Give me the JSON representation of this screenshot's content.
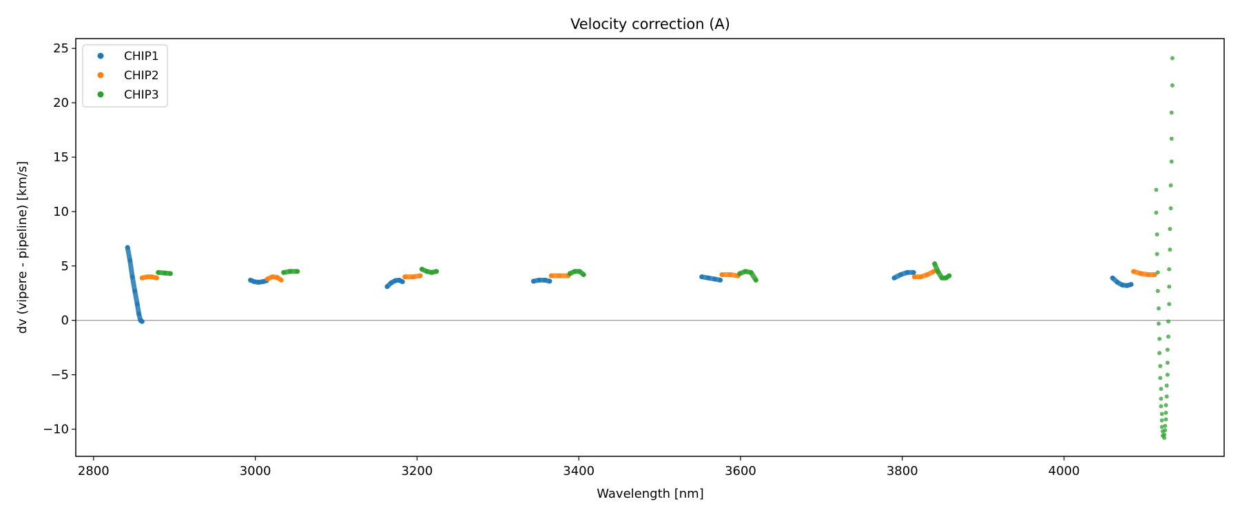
{
  "chart_data": {
    "type": "scatter",
    "title": "Velocity correction (A)",
    "xlabel": "Wavelength [nm]",
    "ylabel": "dv (vipere - pipeline) [km/s]",
    "xlim": [
      2778,
      4198
    ],
    "ylim": [
      -12.5,
      25.9
    ],
    "xticks": [
      2800,
      3000,
      3200,
      3400,
      3600,
      3800,
      4000
    ],
    "yticks": [
      -10,
      -5,
      0,
      5,
      10,
      15,
      20,
      25
    ],
    "hline": 0,
    "legend": {
      "placement": "top-left",
      "entries": [
        "CHIP1",
        "CHIP2",
        "CHIP3"
      ]
    },
    "series": [
      {
        "name": "CHIP1",
        "color": "#1f77b4",
        "segments": [
          {
            "x": [
              2842,
              2845,
              2848,
              2851,
              2854,
              2856,
              2858,
              2860
            ],
            "y": [
              6.7,
              5.5,
              4.0,
              2.7,
              1.5,
              0.6,
              0.0,
              -0.1
            ]
          },
          {
            "x": [
              2994,
              2999,
              3004,
              3009,
              3014
            ],
            "y": [
              3.7,
              3.55,
              3.5,
              3.55,
              3.65
            ]
          },
          {
            "x": [
              3163,
              3168,
              3173,
              3178,
              3182
            ],
            "y": [
              3.1,
              3.45,
              3.65,
              3.7,
              3.55
            ]
          },
          {
            "x": [
              3344,
              3351,
              3358,
              3364
            ],
            "y": [
              3.6,
              3.7,
              3.7,
              3.6
            ]
          },
          {
            "x": [
              3552,
              3560,
              3568,
              3575
            ],
            "y": [
              4.0,
              3.9,
              3.8,
              3.7
            ]
          },
          {
            "x": [
              3790,
              3798,
              3806,
              3814
            ],
            "y": [
              3.9,
              4.2,
              4.4,
              4.4
            ]
          },
          {
            "x": [
              4060,
              4066,
              4072,
              4078,
              4083
            ],
            "y": [
              3.9,
              3.5,
              3.25,
              3.2,
              3.3
            ]
          }
        ]
      },
      {
        "name": "CHIP2",
        "color": "#ff7f0e",
        "segments": [
          {
            "x": [
              2860,
              2866,
              2872,
              2878
            ],
            "y": [
              3.9,
              4.0,
              4.0,
              3.9
            ]
          },
          {
            "x": [
              3015,
              3021,
              3027,
              3032
            ],
            "y": [
              3.8,
              4.0,
              3.95,
              3.7
            ]
          },
          {
            "x": [
              3185,
              3195,
              3204
            ],
            "y": [
              4.0,
              4.0,
              4.1
            ]
          },
          {
            "x": [
              3366,
              3376,
              3387
            ],
            "y": [
              4.1,
              4.1,
              4.1
            ]
          },
          {
            "x": [
              3577,
              3587,
              3597
            ],
            "y": [
              4.2,
              4.2,
              4.1
            ]
          },
          {
            "x": [
              3815,
              3823,
              3831,
              3839
            ],
            "y": [
              4.0,
              4.0,
              4.2,
              4.5
            ]
          },
          {
            "x": [
              4086,
              4095,
              4104,
              4112
            ],
            "y": [
              4.5,
              4.3,
              4.2,
              4.2
            ]
          }
        ]
      },
      {
        "name": "CHIP3",
        "color": "#2ca02c",
        "segments": [
          {
            "x": [
              2880,
              2888,
              2895
            ],
            "y": [
              4.4,
              4.35,
              4.3
            ]
          },
          {
            "x": [
              3035,
              3043,
              3052
            ],
            "y": [
              4.4,
              4.5,
              4.5
            ]
          },
          {
            "x": [
              3206,
              3212,
              3218,
              3224
            ],
            "y": [
              4.7,
              4.5,
              4.4,
              4.5
            ]
          },
          {
            "x": [
              3389,
              3395,
              3401,
              3406
            ],
            "y": [
              4.3,
              4.5,
              4.5,
              4.2
            ]
          },
          {
            "x": [
              3599,
              3606,
              3613,
              3619
            ],
            "y": [
              4.3,
              4.5,
              4.4,
              3.7
            ]
          },
          {
            "x": [
              3840,
              3844,
              3849,
              3854,
              3858
            ],
            "y": [
              5.2,
              4.5,
              3.9,
              3.9,
              4.1
            ]
          },
          {
            "sampled": true,
            "x": [
              4134,
              4134,
              4133,
              4133,
              4133,
              4132,
              4132,
              4131,
              4131,
              4130,
              4130,
              4130,
              4129,
              4129,
              4128,
              4128,
              4128,
              4127,
              4127,
              4126,
              4126,
              4126,
              4125,
              4125,
              4124,
              4124
            ],
            "y": [
              24.1,
              21.6,
              19.1,
              16.7,
              14.6,
              12.4,
              10.3,
              8.4,
              6.5,
              4.7,
              3.1,
              1.5,
              -0.1,
              -1.5,
              -2.7,
              -3.9,
              -5.0,
              -6.0,
              -7.0,
              -7.8,
              -8.5,
              -9.1,
              -9.7,
              -10.1,
              -10.5,
              -10.8
            ]
          },
          {
            "sampled": true,
            "x": [
              4114,
              4114,
              4115,
              4115,
              4116,
              4116,
              4117,
              4117,
              4118,
              4118,
              4119,
              4119,
              4120,
              4120,
              4120,
              4121,
              4121,
              4121,
              4122,
              4122
            ],
            "y": [
              12.0,
              9.9,
              7.9,
              6.1,
              4.4,
              2.7,
              1.1,
              -0.3,
              -1.7,
              -3.0,
              -4.2,
              -5.3,
              -6.3,
              -7.2,
              -7.9,
              -8.6,
              -9.2,
              -9.8,
              -10.2,
              -10.6
            ]
          }
        ]
      }
    ]
  }
}
